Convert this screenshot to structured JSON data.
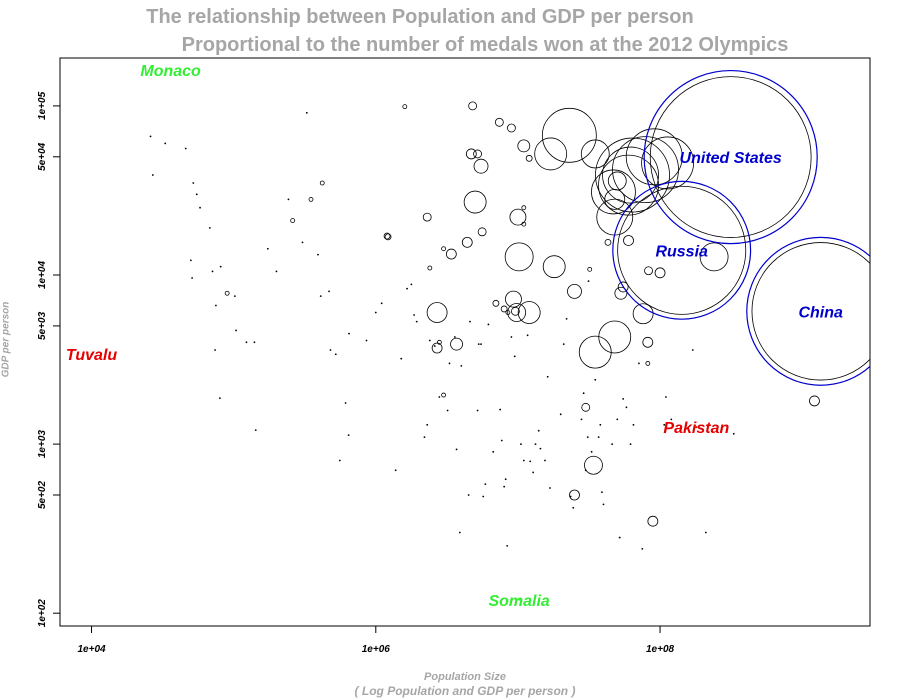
{
  "chart_data": {
    "type": "scatter",
    "title": "The relationship between Population and GDP per person",
    "subtitle": "Proportional to the number of medals won at the 2012 Olympics",
    "xlabel": "Population Size",
    "xlabel_note": "( Log Population and GDP per person )",
    "ylabel": "GDP per person",
    "x_scale": "log10",
    "y_scale": "log10",
    "xlim": [
      6000,
      3000000000
    ],
    "ylim": [
      84,
      192000
    ],
    "x_ticks": [
      {
        "value": 10000,
        "label": "1e+04"
      },
      {
        "value": 1000000,
        "label": "1e+06"
      },
      {
        "value": 100000000,
        "label": "1e+08"
      }
    ],
    "y_ticks": [
      {
        "value": 100,
        "label": "1e+02"
      },
      {
        "value": 500,
        "label": "5e+02"
      },
      {
        "value": 1000,
        "label": "1e+03"
      },
      {
        "value": 5000,
        "label": "5e+03"
      },
      {
        "value": 10000,
        "label": "1e+04"
      },
      {
        "value": 50000,
        "label": "5e+04"
      },
      {
        "value": 100000,
        "label": "1e+05"
      }
    ],
    "grid": false,
    "legend": "none",
    "colors": {
      "blue": "#0000cc",
      "red": "#e60000",
      "green": "#33ee33",
      "circle": "#000000",
      "axis": "#000000"
    },
    "labeled_countries": [
      {
        "name": "United States",
        "x": 314000000,
        "y": 49800,
        "medals": 103,
        "color": "blue",
        "ring": true
      },
      {
        "name": "Russia",
        "x": 142000000,
        "y": 14000,
        "medals": 82,
        "color": "blue",
        "ring": true
      },
      {
        "name": "China",
        "x": 1350000000,
        "y": 6100,
        "medals": 88,
        "color": "blue",
        "ring": true
      },
      {
        "name": "Pakistan",
        "x": 180000000,
        "y": 1260,
        "medals": 0,
        "color": "red",
        "ring": false
      },
      {
        "name": "Tuvalu",
        "x": 10000,
        "y": 3400,
        "medals": 0,
        "color": "red",
        "ring": false
      },
      {
        "name": "Monaco",
        "x": 36000,
        "y": 163000,
        "medals": 0,
        "color": "green",
        "ring": false
      },
      {
        "name": "Somalia",
        "x": 10200000,
        "y": 120,
        "medals": 0,
        "color": "green",
        "ring": false
      }
    ],
    "points": [
      {
        "x": 64000000,
        "y": 39000,
        "r": 37
      },
      {
        "x": 79000000,
        "y": 42000,
        "r": 33
      },
      {
        "x": 62000000,
        "y": 39000,
        "r": 28
      },
      {
        "x": 60000000,
        "y": 34000,
        "r": 30
      },
      {
        "x": 113000000,
        "y": 46000,
        "r": 26
      },
      {
        "x": 91000000,
        "y": 50000,
        "r": 28
      },
      {
        "x": 23000000,
        "y": 67000,
        "r": 27
      },
      {
        "x": 47000000,
        "y": 31000,
        "r": 22
      },
      {
        "x": 35000000,
        "y": 52000,
        "r": 14
      },
      {
        "x": 17000000,
        "y": 52000,
        "r": 16
      },
      {
        "x": 48000000,
        "y": 22000,
        "r": 18
      },
      {
        "x": 240000000,
        "y": 12800,
        "r": 14
      },
      {
        "x": 50000000,
        "y": 36000,
        "r": 9
      },
      {
        "x": 48000000,
        "y": 28000,
        "r": 10
      },
      {
        "x": 53000000,
        "y": 7800,
        "r": 6
      },
      {
        "x": 55000000,
        "y": 8500,
        "r": 5
      },
      {
        "x": 48000000,
        "y": 4300,
        "r": 16
      },
      {
        "x": 76000000,
        "y": 5900,
        "r": 10
      },
      {
        "x": 10000000,
        "y": 22000,
        "r": 8
      },
      {
        "x": 10200000,
        "y": 12800,
        "r": 14
      },
      {
        "x": 18000000,
        "y": 11200,
        "r": 11
      },
      {
        "x": 25000000,
        "y": 8000,
        "r": 7
      },
      {
        "x": 12000000,
        "y": 6000,
        "r": 11
      },
      {
        "x": 9800000,
        "y": 6000,
        "r": 9
      },
      {
        "x": 9300000,
        "y": 7200,
        "r": 8
      },
      {
        "x": 9600000,
        "y": 6100,
        "r": 4
      },
      {
        "x": 2700000,
        "y": 6000,
        "r": 10
      },
      {
        "x": 3700000,
        "y": 3900,
        "r": 6
      },
      {
        "x": 5000000,
        "y": 27000,
        "r": 11
      },
      {
        "x": 7400000,
        "y": 80000,
        "r": 4
      },
      {
        "x": 5500000,
        "y": 44000,
        "r": 7
      },
      {
        "x": 4700000,
        "y": 52000,
        "r": 5
      },
      {
        "x": 5200000,
        "y": 52000,
        "r": 4
      },
      {
        "x": 4800000,
        "y": 100000,
        "r": 4
      },
      {
        "x": 11000000,
        "y": 58000,
        "r": 6
      },
      {
        "x": 5600000,
        "y": 18000,
        "r": 4
      },
      {
        "x": 4400000,
        "y": 15600,
        "r": 5
      },
      {
        "x": 3400000,
        "y": 13300,
        "r": 5
      },
      {
        "x": 2700000,
        "y": 3700,
        "r": 5
      },
      {
        "x": 2300000,
        "y": 22000,
        "r": 4
      },
      {
        "x": 35000000,
        "y": 3500,
        "r": 16
      },
      {
        "x": 34000000,
        "y": 750,
        "r": 9
      },
      {
        "x": 25000000,
        "y": 500,
        "r": 5
      },
      {
        "x": 82000000,
        "y": 4000,
        "r": 5
      },
      {
        "x": 89000000,
        "y": 350,
        "r": 5
      },
      {
        "x": 1220000000,
        "y": 1800,
        "r": 5
      },
      {
        "x": 1600000,
        "y": 99000,
        "r": 2
      },
      {
        "x": 1200000,
        "y": 17000,
        "r": 3
      },
      {
        "x": 1220000,
        "y": 16800,
        "r": 3
      },
      {
        "x": 8000000,
        "y": 6300,
        "r": 3
      },
      {
        "x": 8500000,
        "y": 6000,
        "r": 2
      },
      {
        "x": 7000000,
        "y": 6800,
        "r": 3
      },
      {
        "x": 30000000,
        "y": 1650,
        "r": 4
      },
      {
        "x": 60000000,
        "y": 16000,
        "r": 5
      },
      {
        "x": 100000000,
        "y": 10300,
        "r": 5
      },
      {
        "x": 83000000,
        "y": 10600,
        "r": 4
      },
      {
        "x": 43000000,
        "y": 15600,
        "r": 3
      },
      {
        "x": 82000000,
        "y": 3000,
        "r": 2
      },
      {
        "x": 3000000,
        "y": 1950,
        "r": 2
      },
      {
        "x": 11000000,
        "y": 25000,
        "r": 2
      },
      {
        "x": 11000000,
        "y": 20000,
        "r": 2
      },
      {
        "x": 32000000,
        "y": 10800,
        "r": 2
      },
      {
        "x": 9000000,
        "y": 74000,
        "r": 4
      },
      {
        "x": 12000000,
        "y": 49000,
        "r": 3
      },
      {
        "x": 3000000,
        "y": 14300,
        "r": 2
      },
      {
        "x": 420000,
        "y": 35000,
        "r": 2
      },
      {
        "x": 350000,
        "y": 28000,
        "r": 2
      },
      {
        "x": 260000,
        "y": 21000,
        "r": 2
      },
      {
        "x": 90000,
        "y": 7800,
        "r": 2
      },
      {
        "x": 2800000,
        "y": 4000,
        "r": 2
      },
      {
        "x": 2400000,
        "y": 11000,
        "r": 2
      }
    ],
    "dots": [
      [
        26000,
        66000
      ],
      [
        27000,
        39000
      ],
      [
        33000,
        60000
      ],
      [
        46000,
        56000
      ],
      [
        50000,
        12200
      ],
      [
        51000,
        9600
      ],
      [
        52000,
        35000
      ],
      [
        55000,
        30000
      ],
      [
        58000,
        25000
      ],
      [
        68000,
        19000
      ],
      [
        71000,
        10500
      ],
      [
        74000,
        3600
      ],
      [
        75000,
        6600
      ],
      [
        80000,
        1870
      ],
      [
        81000,
        11200
      ],
      [
        102000,
        7500
      ],
      [
        104000,
        4700
      ],
      [
        123000,
        4000
      ],
      [
        140000,
        4000
      ],
      [
        143000,
        1210
      ],
      [
        174000,
        14300
      ],
      [
        200000,
        10500
      ],
      [
        243000,
        28000
      ],
      [
        305000,
        15600
      ],
      [
        327000,
        91000
      ],
      [
        392000,
        13200
      ],
      [
        410000,
        7500
      ],
      [
        469000,
        8000
      ],
      [
        480000,
        3600
      ],
      [
        523000,
        3400
      ],
      [
        558000,
        800
      ],
      [
        613000,
        1750
      ],
      [
        644000,
        1130
      ],
      [
        648000,
        4500
      ],
      [
        860000,
        4100
      ],
      [
        1000000,
        6000
      ],
      [
        1100000,
        6800
      ],
      [
        1380000,
        700
      ],
      [
        1510000,
        3200
      ],
      [
        1660000,
        8300
      ],
      [
        1780000,
        8800
      ],
      [
        1860000,
        5800
      ],
      [
        1940000,
        5300
      ],
      [
        2200000,
        1100
      ],
      [
        2300000,
        1300
      ],
      [
        2400000,
        4100
      ],
      [
        2600000,
        3800
      ],
      [
        2800000,
        1900
      ],
      [
        3200000,
        1580
      ],
      [
        3300000,
        3000
      ],
      [
        3600000,
        4300
      ],
      [
        3700000,
        930
      ],
      [
        3900000,
        300
      ],
      [
        4000000,
        2900
      ],
      [
        4500000,
        500
      ],
      [
        4600000,
        5300
      ],
      [
        5200000,
        1580
      ],
      [
        5300000,
        3900
      ],
      [
        5500000,
        3900
      ],
      [
        5700000,
        490
      ],
      [
        5900000,
        580
      ],
      [
        6200000,
        5100
      ],
      [
        6700000,
        900
      ],
      [
        7500000,
        1600
      ],
      [
        7700000,
        1050
      ],
      [
        8000000,
        560
      ],
      [
        8200000,
        620
      ],
      [
        8400000,
        250
      ],
      [
        9000000,
        4300
      ],
      [
        9500000,
        3300
      ],
      [
        10500000,
        1000
      ],
      [
        11000000,
        800
      ],
      [
        11700000,
        4400
      ],
      [
        12200000,
        790
      ],
      [
        12800000,
        680
      ],
      [
        13300000,
        1000
      ],
      [
        14000000,
        1200
      ],
      [
        14400000,
        940
      ],
      [
        15500000,
        800
      ],
      [
        16200000,
        2500
      ],
      [
        16800000,
        550
      ],
      [
        20000000,
        1500
      ],
      [
        21000000,
        3900
      ],
      [
        22000000,
        5500
      ],
      [
        23500000,
        490
      ],
      [
        24500000,
        420
      ],
      [
        28000000,
        1400
      ],
      [
        29000000,
        2000
      ],
      [
        30000000,
        700
      ],
      [
        31000000,
        1100
      ],
      [
        31400000,
        9200
      ],
      [
        33000000,
        900
      ],
      [
        35000000,
        2400
      ],
      [
        37000000,
        1100
      ],
      [
        38000000,
        1300
      ],
      [
        39000000,
        520
      ],
      [
        40000000,
        440
      ],
      [
        46000000,
        1000
      ],
      [
        50000000,
        1400
      ],
      [
        52000000,
        280
      ],
      [
        55000000,
        1850
      ],
      [
        58000000,
        1650
      ],
      [
        62000000,
        1000
      ],
      [
        65000000,
        1300
      ],
      [
        71000000,
        3000
      ],
      [
        75000000,
        240
      ],
      [
        107000000,
        1300
      ],
      [
        110000000,
        1900
      ],
      [
        120000000,
        1400
      ],
      [
        170000000,
        3600
      ],
      [
        210000000,
        300
      ],
      [
        330000000,
        1150
      ]
    ]
  }
}
